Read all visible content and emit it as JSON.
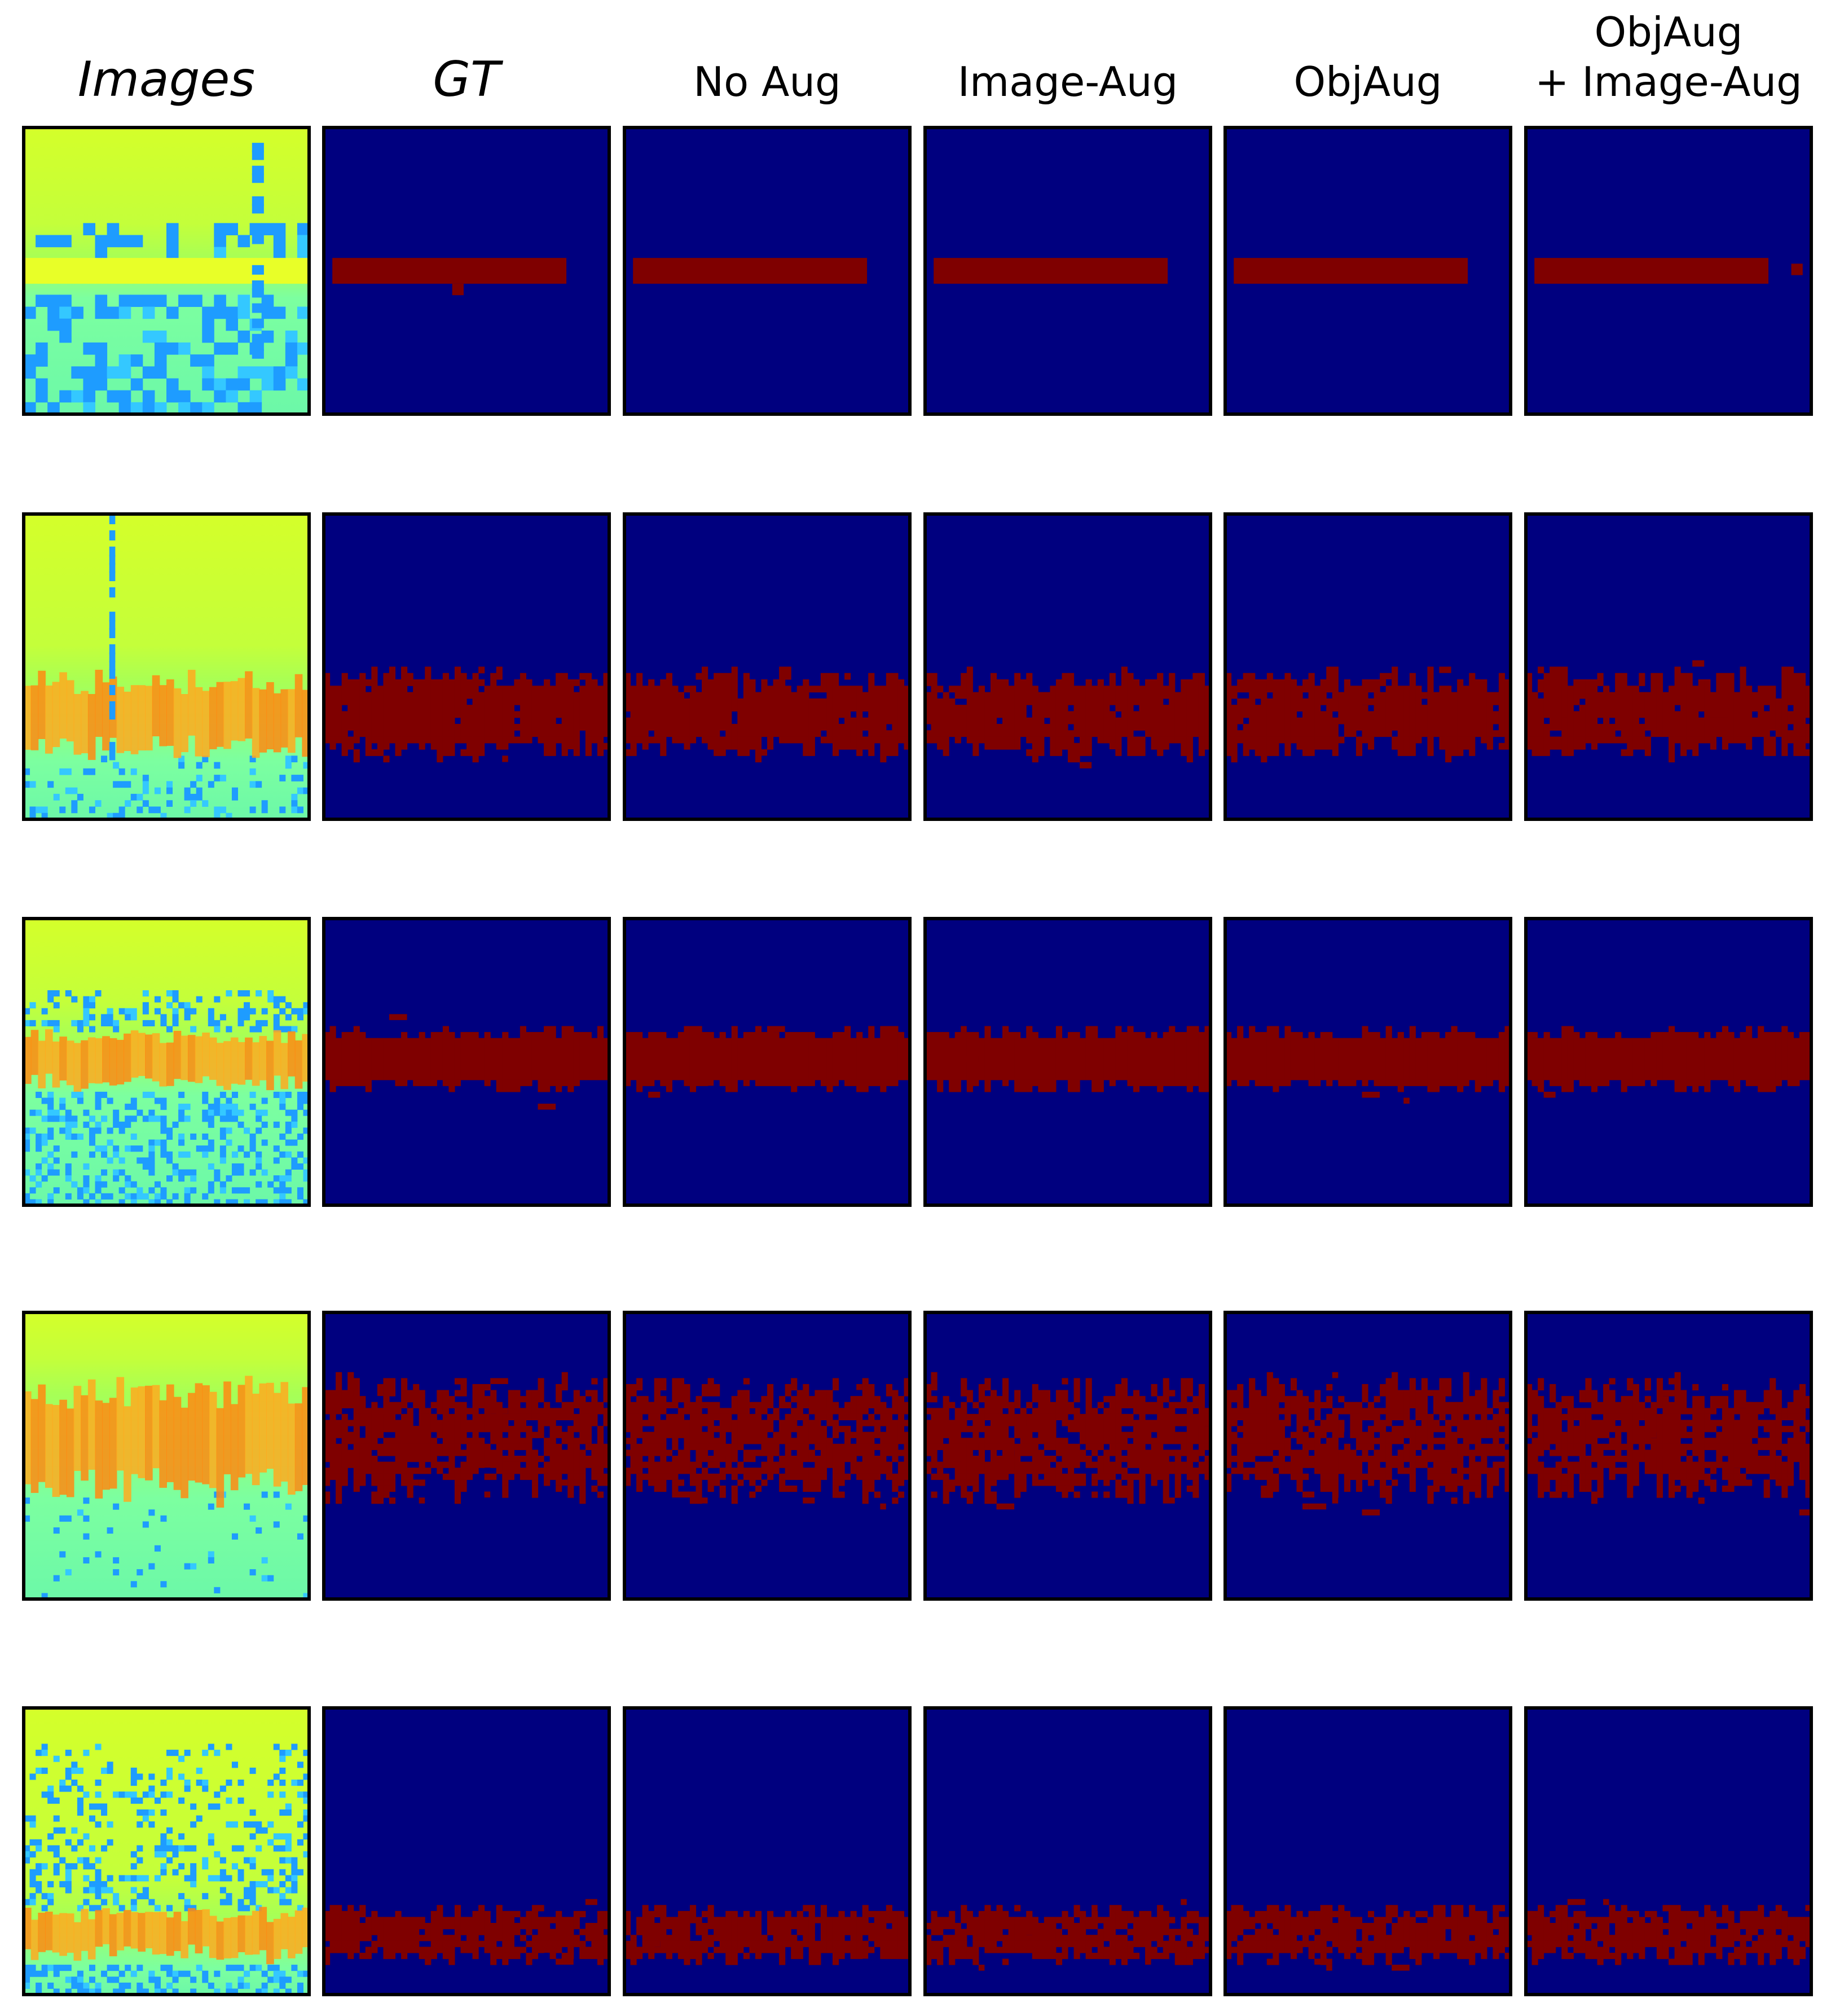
{
  "figure": {
    "column_headers": [
      {
        "id": "images",
        "lines": [
          "Images"
        ],
        "italic": true
      },
      {
        "id": "gt",
        "lines": [
          "GT"
        ],
        "italic": true
      },
      {
        "id": "no-aug",
        "lines": [
          "No Aug"
        ],
        "italic": false
      },
      {
        "id": "image-aug",
        "lines": [
          "Image-Aug"
        ],
        "italic": false
      },
      {
        "id": "objaug",
        "lines": [
          "ObjAug"
        ],
        "italic": false
      },
      {
        "id": "objaug-image-aug",
        "lines": [
          "ObjAug",
          "+ Image-Aug"
        ],
        "italic": false
      }
    ],
    "row_count": 5,
    "colors": {
      "mask_background": "#00007f",
      "mask_object": "#7f0000",
      "image_top": "#d4ff2a",
      "image_mid": "#7cffa0",
      "image_speckle": "#1e9cff",
      "image_band": "#ffaa1f",
      "image_band_hot": "#ff8a12",
      "frame": "#000000"
    },
    "legend": "none",
    "axes": "hidden"
  }
}
